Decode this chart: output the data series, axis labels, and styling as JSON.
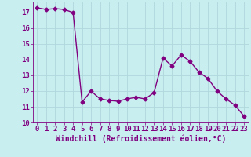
{
  "x": [
    0,
    1,
    2,
    3,
    4,
    5,
    6,
    7,
    8,
    9,
    10,
    11,
    12,
    13,
    14,
    15,
    16,
    17,
    18,
    19,
    20,
    21,
    22,
    23
  ],
  "y": [
    17.3,
    17.2,
    17.25,
    17.2,
    17.0,
    11.3,
    12.0,
    11.5,
    11.4,
    11.35,
    11.5,
    11.6,
    11.5,
    11.9,
    14.1,
    13.6,
    14.3,
    13.9,
    13.2,
    12.8,
    12.0,
    11.5,
    11.1,
    10.4
  ],
  "line_color": "#800080",
  "marker": "D",
  "marker_size": 2.5,
  "linewidth": 1.0,
  "xlabel": "Windchill (Refroidissement éolien,°C)",
  "xlim": [
    -0.5,
    23.5
  ],
  "ylim": [
    10,
    17.7
  ],
  "yticks": [
    10,
    11,
    12,
    13,
    14,
    15,
    16,
    17
  ],
  "xticks": [
    0,
    1,
    2,
    3,
    4,
    5,
    6,
    7,
    8,
    9,
    10,
    11,
    12,
    13,
    14,
    15,
    16,
    17,
    18,
    19,
    20,
    21,
    22,
    23
  ],
  "background_color": "#c8eef0",
  "grid_color": "#b0d8dc",
  "tick_fontsize": 6.5,
  "xlabel_fontsize": 7.0
}
